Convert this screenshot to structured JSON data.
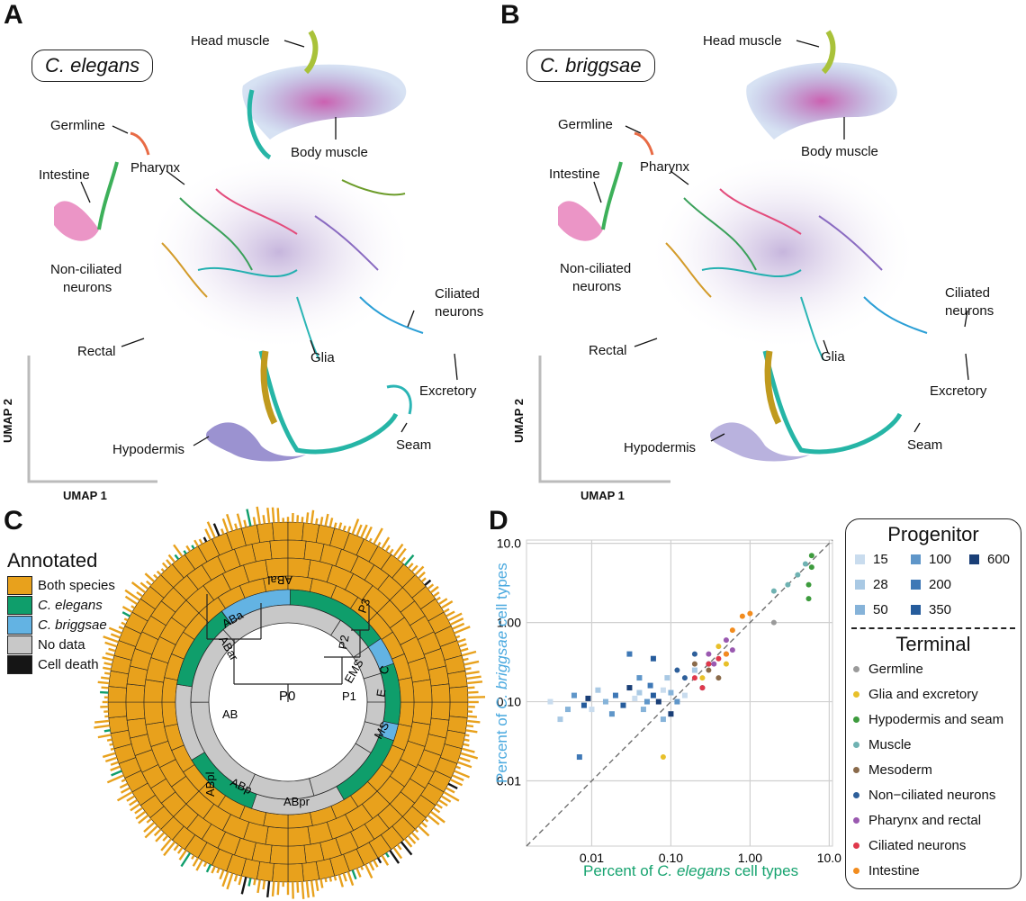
{
  "panels": {
    "A": {
      "letter": "A",
      "species": "C. elegans",
      "labels": [
        "Head muscle",
        "Germline",
        "Body muscle",
        "Intestine",
        "Pharynx",
        "Non-ciliated",
        "neurons",
        "Ciliated",
        "neurons",
        "Rectal",
        "Glia",
        "Excretory",
        "Seam",
        "Hypodermis"
      ],
      "axis_x": "UMAP 1",
      "axis_y": "UMAP 2"
    },
    "B": {
      "letter": "B",
      "species": "C. briggsae",
      "labels": [
        "Head muscle",
        "Germline",
        "Body muscle",
        "Intestine",
        "Pharynx",
        "Non-ciliated",
        "neurons",
        "Ciliated",
        "neurons",
        "Rectal",
        "Glia",
        "Excretory",
        "Seam",
        "Hypodermis"
      ],
      "axis_x": "UMAP 1",
      "axis_y": "UMAP 2"
    },
    "C": {
      "letter": "C",
      "legend_title": "Annotated",
      "legend": [
        {
          "label": "Both species",
          "color": "#e8a11c"
        },
        {
          "label": "C. elegans",
          "color": "#0f9e6b"
        },
        {
          "label": "C. briggsae",
          "color": "#63b3e3"
        },
        {
          "label": "No data",
          "color": "#c8c8c8"
        },
        {
          "label": "Cell death",
          "color": "#151515"
        }
      ],
      "lineage_labels": [
        "P0",
        "AB",
        "P1",
        "ABa",
        "ABp",
        "ABal",
        "ABar",
        "ABpl",
        "ABpr",
        "P2",
        "EMS",
        "P3",
        "C",
        "E",
        "MS"
      ]
    },
    "D": {
      "letter": "D",
      "progenitor_title": "Progenitor",
      "progenitor_sizes": [
        "15",
        "28",
        "50",
        "100",
        "200",
        "350",
        "600"
      ],
      "progenitor_colors": [
        "#c9dcee",
        "#a9c9e4",
        "#86b3d9",
        "#5f96c9",
        "#3e78b6",
        "#265c9c",
        "#1a3f77"
      ],
      "terminal_title": "Terminal",
      "terminal": [
        {
          "label": "Germline",
          "color": "#9a9a9a"
        },
        {
          "label": "Glia and excretory",
          "color": "#e8c02a"
        },
        {
          "label": "Hypodermis and seam",
          "color": "#3d9b3d"
        },
        {
          "label": "Muscle",
          "color": "#6fb2b2"
        },
        {
          "label": "Mesoderm",
          "color": "#8a6a4a"
        },
        {
          "label": "Non−ciliated neurons",
          "color": "#2e5f9a"
        },
        {
          "label": "Pharynx and rectal",
          "color": "#9a59b0"
        },
        {
          "label": "Ciliated neurons",
          "color": "#e0384b"
        },
        {
          "label": "Intestine",
          "color": "#f28c1e"
        }
      ],
      "xlabel_prefix": "Percent of ",
      "xlabel_species": "C. elegans",
      "xlabel_suffix": " cell types",
      "ylabel_prefix": "Percent of ",
      "ylabel_species": "C. briggsae",
      "ylabel_suffix": " cell types",
      "ticks": [
        "0.01",
        "0.10",
        "1.00",
        "10.0"
      ]
    }
  },
  "chart_data": {
    "type": "scatter",
    "xscale": "log",
    "yscale": "log",
    "xlim": [
      0.0015,
      11
    ],
    "ylim": [
      0.0015,
      11
    ],
    "xlabel": "Percent of C. elegans cell types",
    "ylabel": "Percent of C. briggsae cell types",
    "reference_line": "y = x (dashed)",
    "grid": true,
    "series": [
      {
        "name": "Progenitor",
        "points": [
          [
            0.003,
            0.1
          ],
          [
            0.004,
            0.06
          ],
          [
            0.005,
            0.08
          ],
          [
            0.006,
            0.12
          ],
          [
            0.007,
            0.02
          ],
          [
            0.008,
            0.09
          ],
          [
            0.009,
            0.11
          ],
          [
            0.01,
            0.08
          ],
          [
            0.012,
            0.14
          ],
          [
            0.015,
            0.1
          ],
          [
            0.018,
            0.07
          ],
          [
            0.02,
            0.12
          ],
          [
            0.025,
            0.09
          ],
          [
            0.03,
            0.15
          ],
          [
            0.035,
            0.11
          ],
          [
            0.04,
            0.13
          ],
          [
            0.045,
            0.08
          ],
          [
            0.05,
            0.1
          ],
          [
            0.055,
            0.16
          ],
          [
            0.06,
            0.12
          ],
          [
            0.07,
            0.1
          ],
          [
            0.08,
            0.14
          ],
          [
            0.09,
            0.2
          ],
          [
            0.1,
            0.13
          ],
          [
            0.12,
            0.1
          ],
          [
            0.03,
            0.4
          ],
          [
            0.06,
            0.35
          ],
          [
            0.1,
            0.07
          ],
          [
            0.15,
            0.12
          ],
          [
            0.2,
            0.25
          ],
          [
            0.08,
            0.06
          ],
          [
            0.04,
            0.2
          ]
        ]
      },
      {
        "name": "Germline",
        "points": [
          [
            2.0,
            1.0
          ],
          [
            0.3,
            0.3
          ]
        ]
      },
      {
        "name": "Glia and excretory",
        "points": [
          [
            0.4,
            0.5
          ],
          [
            0.25,
            0.2
          ],
          [
            0.08,
            0.02
          ],
          [
            0.5,
            0.3
          ]
        ]
      },
      {
        "name": "Hypodermis and seam",
        "points": [
          [
            5.5,
            3.0
          ],
          [
            6.0,
            5.0
          ],
          [
            5.5,
            2.0
          ],
          [
            6.0,
            7.0
          ]
        ]
      },
      {
        "name": "Muscle",
        "points": [
          [
            3.0,
            3.0
          ],
          [
            4.0,
            4.0
          ],
          [
            2.0,
            2.5
          ],
          [
            5.0,
            5.5
          ]
        ]
      },
      {
        "name": "Mesoderm",
        "points": [
          [
            0.3,
            0.25
          ],
          [
            0.2,
            0.3
          ],
          [
            0.4,
            0.2
          ]
        ]
      },
      {
        "name": "Non−ciliated neurons",
        "points": [
          [
            0.15,
            0.2
          ],
          [
            0.2,
            0.4
          ],
          [
            0.3,
            0.3
          ],
          [
            0.12,
            0.25
          ],
          [
            0.25,
            0.15
          ]
        ]
      },
      {
        "name": "Pharynx and rectal",
        "points": [
          [
            0.3,
            0.4
          ],
          [
            0.5,
            0.6
          ],
          [
            0.35,
            0.3
          ],
          [
            0.6,
            0.45
          ]
        ]
      },
      {
        "name": "Ciliated neurons",
        "points": [
          [
            0.3,
            0.3
          ],
          [
            0.25,
            0.15
          ],
          [
            0.4,
            0.35
          ],
          [
            0.5,
            0.4
          ],
          [
            0.2,
            0.2
          ]
        ]
      },
      {
        "name": "Intestine",
        "points": [
          [
            0.6,
            0.8
          ],
          [
            0.8,
            1.2
          ],
          [
            1.0,
            1.3
          ],
          [
            0.5,
            0.4
          ]
        ]
      }
    ]
  }
}
